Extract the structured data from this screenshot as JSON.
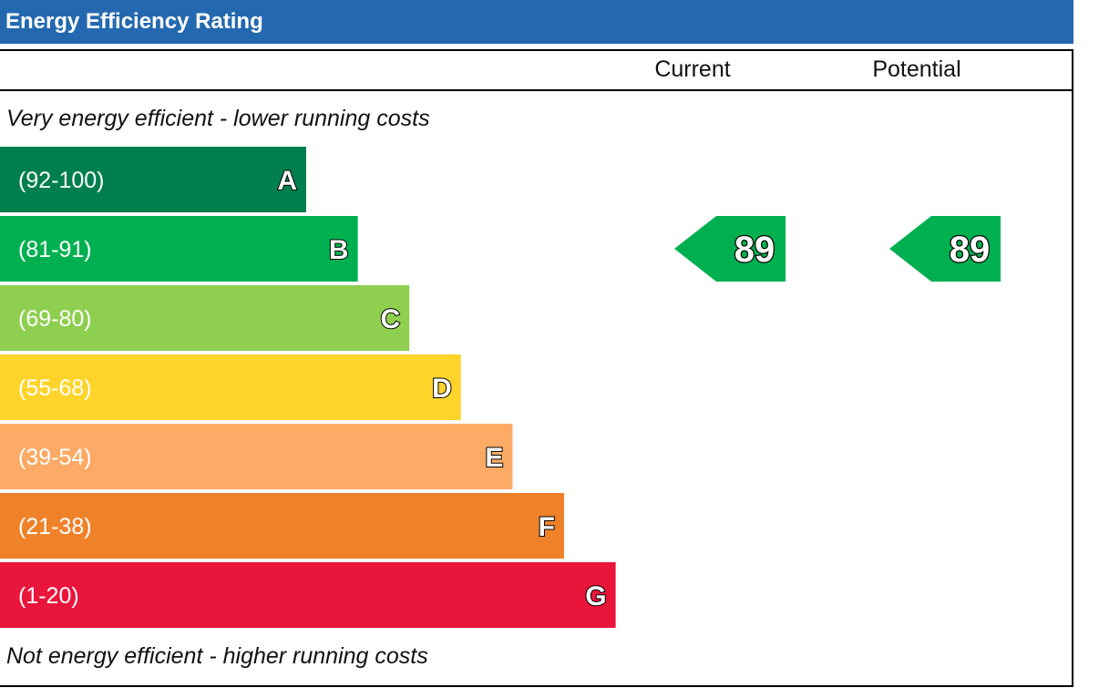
{
  "chart_data": {
    "type": "bar",
    "title": "Energy Efficiency Rating",
    "columns": [
      "Current",
      "Potential"
    ],
    "top_note": "Very energy efficient - lower running costs",
    "bottom_note": "Not energy efficient - higher running costs",
    "bands": [
      {
        "letter": "A",
        "range": "(92-100)",
        "color": "#007f4e"
      },
      {
        "letter": "B",
        "range": "(81-91)",
        "color": "#00b050"
      },
      {
        "letter": "C",
        "range": "(69-80)",
        "color": "#8fcf4f"
      },
      {
        "letter": "D",
        "range": "(55-68)",
        "color": "#ffd42a"
      },
      {
        "letter": "E",
        "range": "(39-54)",
        "color": "#fcaa65"
      },
      {
        "letter": "F",
        "range": "(21-38)",
        "color": "#ef8229"
      },
      {
        "letter": "G",
        "range": "(1-20)",
        "color": "#e9153b"
      }
    ],
    "current": {
      "value": 89,
      "band": "B"
    },
    "potential": {
      "value": 89,
      "band": "B"
    }
  }
}
